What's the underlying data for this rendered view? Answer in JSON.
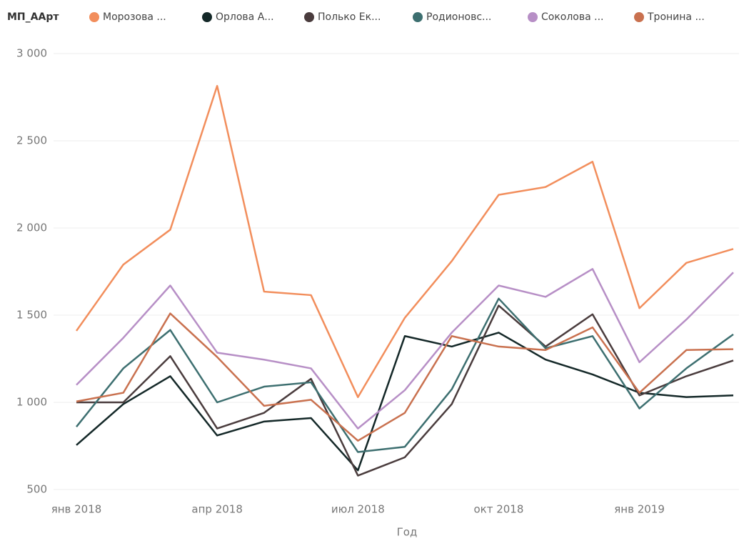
{
  "chart_data": {
    "type": "line",
    "legend_title": "МП_ААрт",
    "x_label": "Год",
    "categories": [
      "янв 2018",
      null,
      null,
      "апр 2018",
      null,
      null,
      "июл 2018",
      null,
      null,
      "окт 2018",
      null,
      null,
      "янв 2019",
      null,
      null
    ],
    "ylim": [
      500,
      3000
    ],
    "yticks": [
      500,
      {
        "value": 1000,
        "label": "1 000"
      },
      {
        "value": 1500,
        "label": "1 500"
      },
      {
        "value": 2000,
        "label": "2 000"
      },
      {
        "value": 2500,
        "label": "2 500"
      },
      {
        "value": 3000,
        "label": "3 000"
      }
    ],
    "grid": true,
    "legend": "top-left",
    "series": [
      {
        "name": "Морозова ...",
        "color": "#f28e5c",
        "values": [
          1410,
          1790,
          1990,
          2815,
          1635,
          1615,
          1030,
          1485,
          1810,
          2190,
          2235,
          2380,
          1540,
          1800,
          1880
        ]
      },
      {
        "name": "Орлова А...",
        "color": "#142828",
        "values": [
          755,
          990,
          1150,
          810,
          890,
          910,
          610,
          1380,
          1320,
          1400,
          1245,
          1160,
          1055,
          1030,
          1040
        ]
      },
      {
        "name": "Полько Ек...",
        "color": "#4a3c3d",
        "values": [
          1000,
          1000,
          1265,
          850,
          940,
          1135,
          580,
          685,
          990,
          1555,
          1320,
          1505,
          1040,
          1150,
          1240
        ]
      },
      {
        "name": "Родионовс...",
        "color": "#3d6f70",
        "values": [
          860,
          1195,
          1415,
          1000,
          1090,
          1115,
          715,
          745,
          1075,
          1595,
          1310,
          1380,
          965,
          1195,
          1390
        ]
      },
      {
        "name": "Соколова ...",
        "color": "#b78fc6",
        "values": [
          1100,
          1370,
          1670,
          1285,
          1245,
          1195,
          850,
          1070,
          1400,
          1670,
          1605,
          1765,
          1230,
          1475,
          1745
        ]
      },
      {
        "name": "Тронина ...",
        "color": "#c9714f",
        "values": [
          1005,
          1055,
          1510,
          1260,
          980,
          1015,
          780,
          940,
          1380,
          1320,
          1300,
          1430,
          1055,
          1300,
          1305
        ]
      }
    ]
  }
}
